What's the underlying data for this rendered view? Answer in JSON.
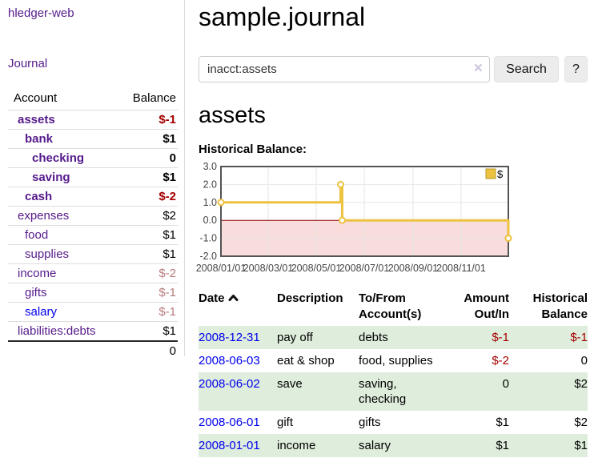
{
  "colors": {
    "link_purple": "#551a8b",
    "link_blue": "#0000ee",
    "negative_strong": "#a40000",
    "negative_soft": "#b97c7c",
    "row_green": "#dfeddc",
    "chart_line_gold": "#edc240",
    "chart_negative_region": "#f9dcdc",
    "chart_zero_line": "#8b0000",
    "chart_border": "#545454",
    "chart_grid": "#e6e6e6"
  },
  "sidebar": {
    "brand": "hledger-web",
    "journal_link": "Journal",
    "accounts_header": {
      "account": "Account",
      "balance": "Balance"
    },
    "accounts": [
      {
        "name": "assets",
        "depth": 1,
        "bold": true,
        "balance": "$-1"
      },
      {
        "name": "bank",
        "depth": 2,
        "bold": true,
        "balance": "$1"
      },
      {
        "name": "checking",
        "depth": 3,
        "bold": true,
        "balance": "0"
      },
      {
        "name": "saving",
        "depth": 3,
        "bold": true,
        "balance": "$1"
      },
      {
        "name": "cash",
        "depth": 2,
        "bold": true,
        "balance": "$-2"
      },
      {
        "name": "expenses",
        "depth": 1,
        "bold": false,
        "balance": "$2"
      },
      {
        "name": "food",
        "depth": 2,
        "bold": false,
        "balance": "$1"
      },
      {
        "name": "supplies",
        "depth": 2,
        "bold": false,
        "balance": "$1"
      },
      {
        "name": "income",
        "depth": 1,
        "bold": false,
        "balance": "$-2"
      },
      {
        "name": "gifts",
        "depth": 2,
        "bold": false,
        "balance": "$-1"
      },
      {
        "name": "salary",
        "depth": 2,
        "bold": false,
        "balance": "$-1",
        "link_blue": true
      },
      {
        "name": "liabilities:debts",
        "depth": 1,
        "bold": false,
        "balance": "$1"
      }
    ],
    "total": "0"
  },
  "main": {
    "title": "sample.journal",
    "search": {
      "value": "inacct:assets",
      "clear_icon": "×",
      "search_button": "Search",
      "help_button": "?"
    },
    "account_heading": "assets",
    "chart_label": "Historical Balance:"
  },
  "chart_data": {
    "type": "line",
    "title": "Historical Balance:",
    "step": true,
    "legend": "$",
    "legend_position": "top-right",
    "grid": true,
    "ylim": [
      -2.0,
      3.0
    ],
    "yticks": [
      3.0,
      2.0,
      1.0,
      0.0,
      -1.0,
      -2.0
    ],
    "ytick_labels": [
      "3.0",
      "2.0",
      "1.0",
      "0.0",
      "-1.0",
      "-2.0"
    ],
    "xlim": [
      "2008-01-01",
      "2008-12-31"
    ],
    "xtick_labels": [
      "2008/01/01",
      "2008/03/01",
      "2008/05/01",
      "2008/07/01",
      "2008/09/01",
      "2008/11/01"
    ],
    "series": [
      {
        "name": "$",
        "points": [
          [
            "2008-01-01",
            1
          ],
          [
            "2008-06-01",
            2
          ],
          [
            "2008-06-03",
            0
          ],
          [
            "2008-12-31",
            -1
          ]
        ]
      }
    ],
    "negative_region_shaded": true
  },
  "register": {
    "headers": [
      {
        "lines": [
          "Date"
        ],
        "sort": "asc",
        "align": "left"
      },
      {
        "lines": [
          "Description"
        ],
        "align": "left"
      },
      {
        "lines": [
          "To/From",
          "Account(s)"
        ],
        "align": "left"
      },
      {
        "lines": [
          "Amount",
          "Out/In"
        ],
        "align": "right"
      },
      {
        "lines": [
          "Historical",
          "Balance"
        ],
        "align": "right"
      }
    ],
    "rows": [
      {
        "date": "2008-12-31",
        "description": "pay off",
        "accounts": "debts",
        "amount": "$-1",
        "balance": "$-1"
      },
      {
        "date": "2008-06-03",
        "description": "eat & shop",
        "accounts": "food, supplies",
        "amount": "$-2",
        "balance": "0"
      },
      {
        "date": "2008-06-02",
        "description": "save",
        "accounts": "saving, checking",
        "amount": "0",
        "balance": "$2"
      },
      {
        "date": "2008-06-01",
        "description": "gift",
        "accounts": "gifts",
        "amount": "$1",
        "balance": "$2"
      },
      {
        "date": "2008-01-01",
        "description": "income",
        "accounts": "salary",
        "amount": "$1",
        "balance": "$1"
      }
    ]
  }
}
